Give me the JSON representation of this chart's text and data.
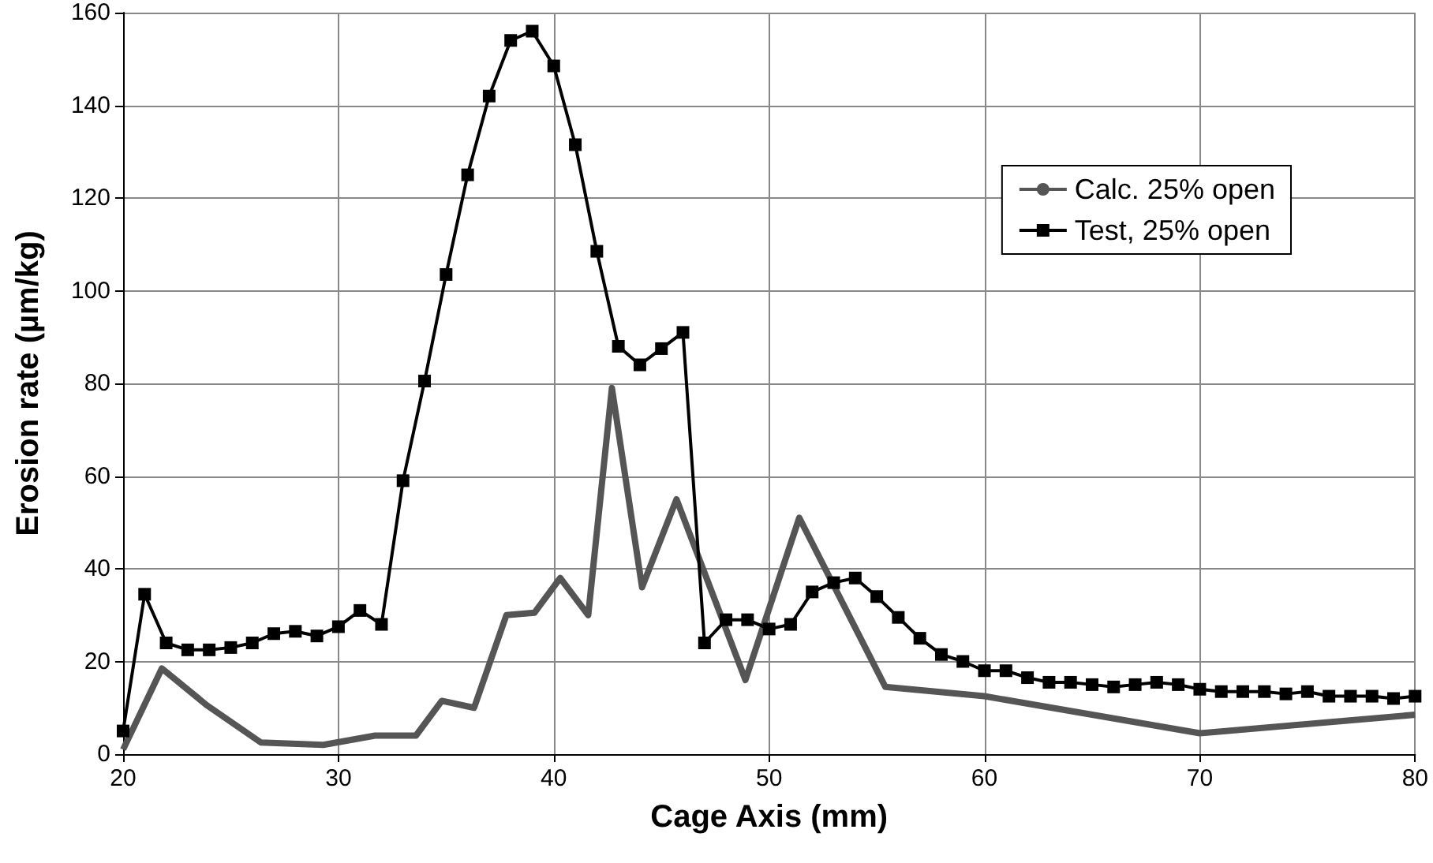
{
  "chart_data": {
    "type": "line",
    "xlabel": "Cage Axis (mm)",
    "ylabel": "Erosion rate (µm/kg)",
    "xlim": [
      20,
      80
    ],
    "xticks": [
      20,
      30,
      40,
      50,
      60,
      70,
      80
    ],
    "ylim": [
      0,
      160
    ],
    "yticks": [
      0,
      20,
      40,
      60,
      80,
      100,
      120,
      140,
      160
    ],
    "grid": true,
    "legend": "top right",
    "series": [
      {
        "name": "Calc. 25% open",
        "color": "#555555",
        "marker": "none",
        "x": [
          20,
          21.8,
          23.9,
          26.4,
          29.3,
          31.7,
          33.6,
          34.8,
          36.3,
          37.8,
          39.1,
          40.3,
          41.6,
          42.7,
          44.1,
          45.7,
          48.9,
          51.4,
          55.4,
          60,
          70,
          80
        ],
        "values": [
          1,
          18.5,
          10.5,
          2.5,
          2,
          4,
          4,
          11.5,
          10,
          30,
          30.5,
          38,
          30,
          79,
          36,
          55,
          16,
          51,
          14.5,
          12.5,
          4.5,
          8.5
        ]
      },
      {
        "name": "Test, 25% open",
        "color": "#000000",
        "marker": "square",
        "x": [
          20,
          21,
          22,
          23,
          24,
          25,
          26,
          27,
          28,
          29,
          30,
          31,
          32,
          33,
          34,
          35,
          36,
          37,
          38,
          39,
          40,
          41,
          42,
          43,
          44,
          45,
          46,
          47,
          48,
          49,
          50,
          51,
          52,
          53,
          54,
          55,
          56,
          57,
          58,
          59,
          60,
          61,
          62,
          63,
          64,
          65,
          66,
          67,
          68,
          69,
          70,
          71,
          72,
          73,
          74,
          75,
          76,
          77,
          78,
          79,
          80
        ],
        "values": [
          5,
          34.5,
          24,
          22.5,
          22.5,
          23,
          24,
          26,
          26.5,
          25.5,
          27.5,
          31,
          28,
          59,
          80.5,
          103.5,
          125,
          142,
          154,
          156,
          148.5,
          131.5,
          108.5,
          88,
          84,
          87.5,
          91,
          24,
          29,
          29,
          27,
          28,
          35,
          37,
          38,
          34,
          29.5,
          25,
          21.5,
          20,
          18,
          18,
          16.5,
          15.5,
          15.5,
          15,
          14.5,
          15,
          15.5,
          15,
          14,
          13.5,
          13.5,
          13.5,
          13,
          13.5,
          12.5,
          12.5,
          12.5,
          12,
          12.5
        ]
      }
    ]
  }
}
